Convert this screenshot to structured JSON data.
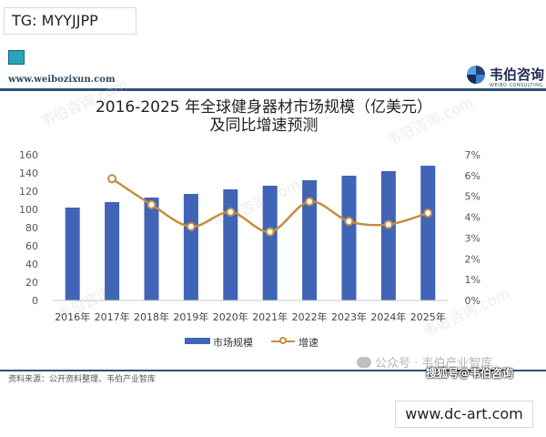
{
  "header": {
    "tg_tag": "TG: MYYJJPP",
    "site_url": "www.weibozixun.com",
    "brand_name": "韦伯咨询",
    "brand_sub": "WEIBO CONSULTING"
  },
  "watermarks": {
    "background": [
      "韦伯咨询.com",
      "韦伯咨询.com",
      "韦伯咨询.com",
      "韦伯咨询",
      "韦伯咨询.com"
    ],
    "wechat": "公众号 · 韦伯产业智库",
    "sohu": "搜狐号@韦伯咨询"
  },
  "footer": {
    "source": "资料来源：公开资料整理、韦伯产业智库",
    "site": "www.dc-art.com"
  },
  "colors": {
    "bar": "#4064b6",
    "line": "#c38f3f",
    "rule": "#2f4f7c"
  },
  "chart_data": {
    "type": "bar",
    "title_line1": "2016-2025 年全球健身器材市场规模（亿美元）",
    "title_line2": "及同比增速预测",
    "categories": [
      "2016年",
      "2017年",
      "2018年",
      "2019年",
      "2020年",
      "2021年",
      "2022年",
      "2023年",
      "2024年",
      "2025年"
    ],
    "y_ticks": [
      "0",
      "20",
      "40",
      "60",
      "80",
      "100",
      "120",
      "140",
      "160"
    ],
    "y2_ticks": [
      "0%",
      "1%",
      "2%",
      "3%",
      "4%",
      "5%",
      "6%",
      "7%"
    ],
    "ylim": [
      0,
      160
    ],
    "y2lim": [
      0,
      7
    ],
    "series": [
      {
        "name": "市场规模",
        "type": "bar",
        "values": [
          102,
          108,
          113,
          117,
          122,
          126,
          132,
          137,
          142,
          148
        ]
      },
      {
        "name": "增速",
        "type": "line",
        "values": [
          null,
          5.85,
          4.6,
          3.55,
          4.25,
          3.3,
          4.75,
          3.8,
          3.65,
          4.2
        ]
      }
    ],
    "grid": false,
    "legend": "bottom"
  }
}
